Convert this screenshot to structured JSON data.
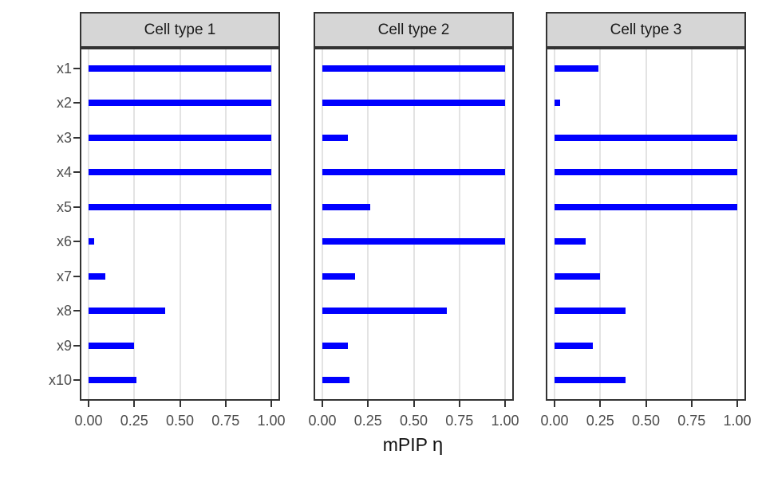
{
  "chart_data": {
    "type": "bar",
    "orientation": "horizontal",
    "facet_variable_labels": [
      "Cell type 1",
      "Cell type 2",
      "Cell type 3"
    ],
    "categories": [
      "x1",
      "x2",
      "x3",
      "x4",
      "x5",
      "x6",
      "x7",
      "x8",
      "x9",
      "x10"
    ],
    "series": [
      {
        "name": "Cell type 1",
        "values": [
          1.0,
          1.0,
          1.0,
          1.0,
          1.0,
          0.03,
          0.09,
          0.42,
          0.25,
          0.26
        ]
      },
      {
        "name": "Cell type 2",
        "values": [
          1.0,
          1.0,
          0.14,
          1.0,
          0.26,
          1.0,
          0.18,
          0.68,
          0.14,
          0.15
        ]
      },
      {
        "name": "Cell type 3",
        "values": [
          0.24,
          0.03,
          1.0,
          1.0,
          1.0,
          0.17,
          0.25,
          0.39,
          0.21,
          0.39
        ]
      }
    ],
    "xlabel": "mPIP η",
    "xlabel_main": "mPIP",
    "xlabel_symbol": "η",
    "ylabel": "",
    "x_tick_labels": [
      "0.00",
      "0.25",
      "0.50",
      "0.75",
      "1.00"
    ],
    "x_tick_values": [
      0,
      0.25,
      0.5,
      0.75,
      1
    ],
    "xlim": [
      0,
      1
    ],
    "grid": "vertical-major-only",
    "legend": "none"
  },
  "colors": {
    "bar": "#0000FF",
    "strip_background": "#d6d6d6",
    "strip_text": "#1a1a1a",
    "panel_background": "#ffffff",
    "panel_border": "#333333",
    "gridline": "#e3e3e3",
    "axis_text": "#4d4d4d",
    "tick_mark": "#333333",
    "page_background": "#ffffff"
  }
}
